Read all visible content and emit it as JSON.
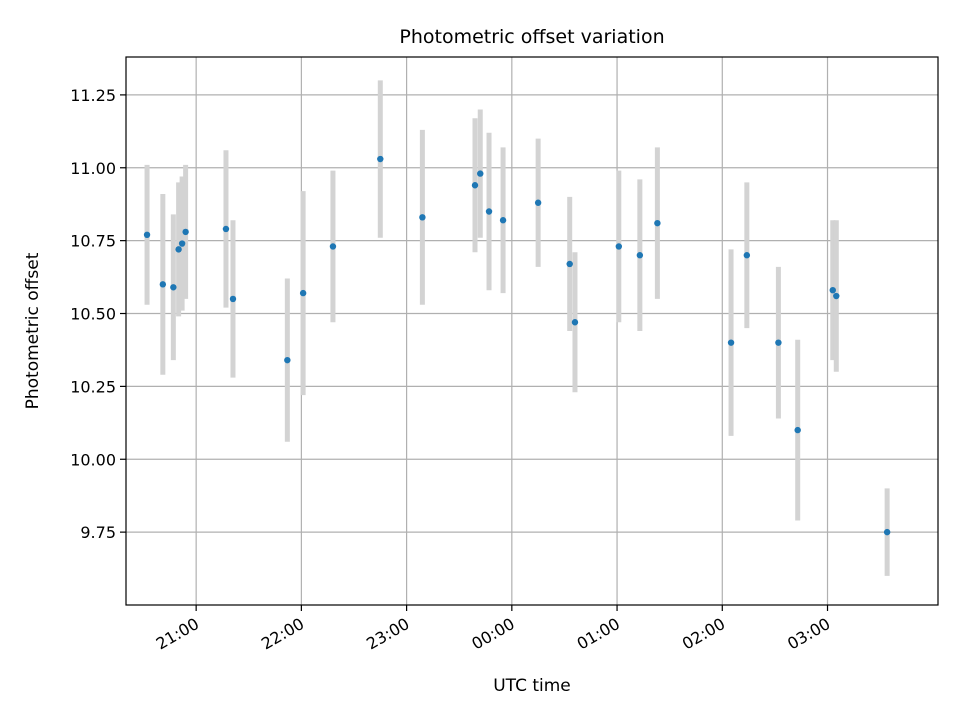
{
  "chart_data": {
    "type": "scatter",
    "title": "Photometric offset variation",
    "xlabel": "UTC time",
    "ylabel": "Photometric offset",
    "x_unit": "UTC time (HH:MM)",
    "xlim": [
      "20:20",
      "04:03"
    ],
    "ylim": [
      9.5,
      11.38
    ],
    "grid": true,
    "x_ticks": [
      "21:00",
      "22:00",
      "23:00",
      "00:00",
      "01:00",
      "02:00",
      "03:00"
    ],
    "y_ticks": [
      "9.75",
      "10.00",
      "10.25",
      "10.50",
      "10.75",
      "11.00",
      "11.25"
    ],
    "colors": {
      "point": "#1f77b4",
      "errorbar": "#d3d3d3",
      "grid": "#b0b0b0"
    },
    "points": [
      {
        "x": "20:32",
        "y": 10.77,
        "err": 0.24
      },
      {
        "x": "20:41",
        "y": 10.6,
        "err": 0.31
      },
      {
        "x": "20:47",
        "y": 10.59,
        "err": 0.25
      },
      {
        "x": "20:50",
        "y": 10.72,
        "err": 0.23
      },
      {
        "x": "20:52",
        "y": 10.74,
        "err": 0.23
      },
      {
        "x": "20:54",
        "y": 10.78,
        "err": 0.23
      },
      {
        "x": "21:17",
        "y": 10.79,
        "err": 0.27
      },
      {
        "x": "21:21",
        "y": 10.55,
        "err": 0.27
      },
      {
        "x": "21:52",
        "y": 10.34,
        "err": 0.28
      },
      {
        "x": "22:01",
        "y": 10.57,
        "err": 0.35
      },
      {
        "x": "22:18",
        "y": 10.73,
        "err": 0.26
      },
      {
        "x": "22:45",
        "y": 11.03,
        "err": 0.27
      },
      {
        "x": "23:09",
        "y": 10.83,
        "err": 0.3
      },
      {
        "x": "23:39",
        "y": 10.94,
        "err": 0.23
      },
      {
        "x": "23:42",
        "y": 10.98,
        "err": 0.22
      },
      {
        "x": "23:47",
        "y": 10.85,
        "err": 0.27
      },
      {
        "x": "23:55",
        "y": 10.82,
        "err": 0.25
      },
      {
        "x": "00:15",
        "y": 10.88,
        "err": 0.22
      },
      {
        "x": "00:33",
        "y": 10.67,
        "err": 0.23
      },
      {
        "x": "00:36",
        "y": 10.47,
        "err": 0.24
      },
      {
        "x": "01:01",
        "y": 10.73,
        "err": 0.26
      },
      {
        "x": "01:13",
        "y": 10.7,
        "err": 0.26
      },
      {
        "x": "01:23",
        "y": 10.81,
        "err": 0.26
      },
      {
        "x": "02:05",
        "y": 10.4,
        "err": 0.32
      },
      {
        "x": "02:14",
        "y": 10.7,
        "err": 0.25
      },
      {
        "x": "02:32",
        "y": 10.4,
        "err": 0.26
      },
      {
        "x": "02:43",
        "y": 10.1,
        "err": 0.31
      },
      {
        "x": "03:03",
        "y": 10.58,
        "err": 0.24
      },
      {
        "x": "03:05",
        "y": 10.56,
        "err": 0.26
      },
      {
        "x": "03:34",
        "y": 9.75,
        "err": 0.15
      }
    ]
  }
}
